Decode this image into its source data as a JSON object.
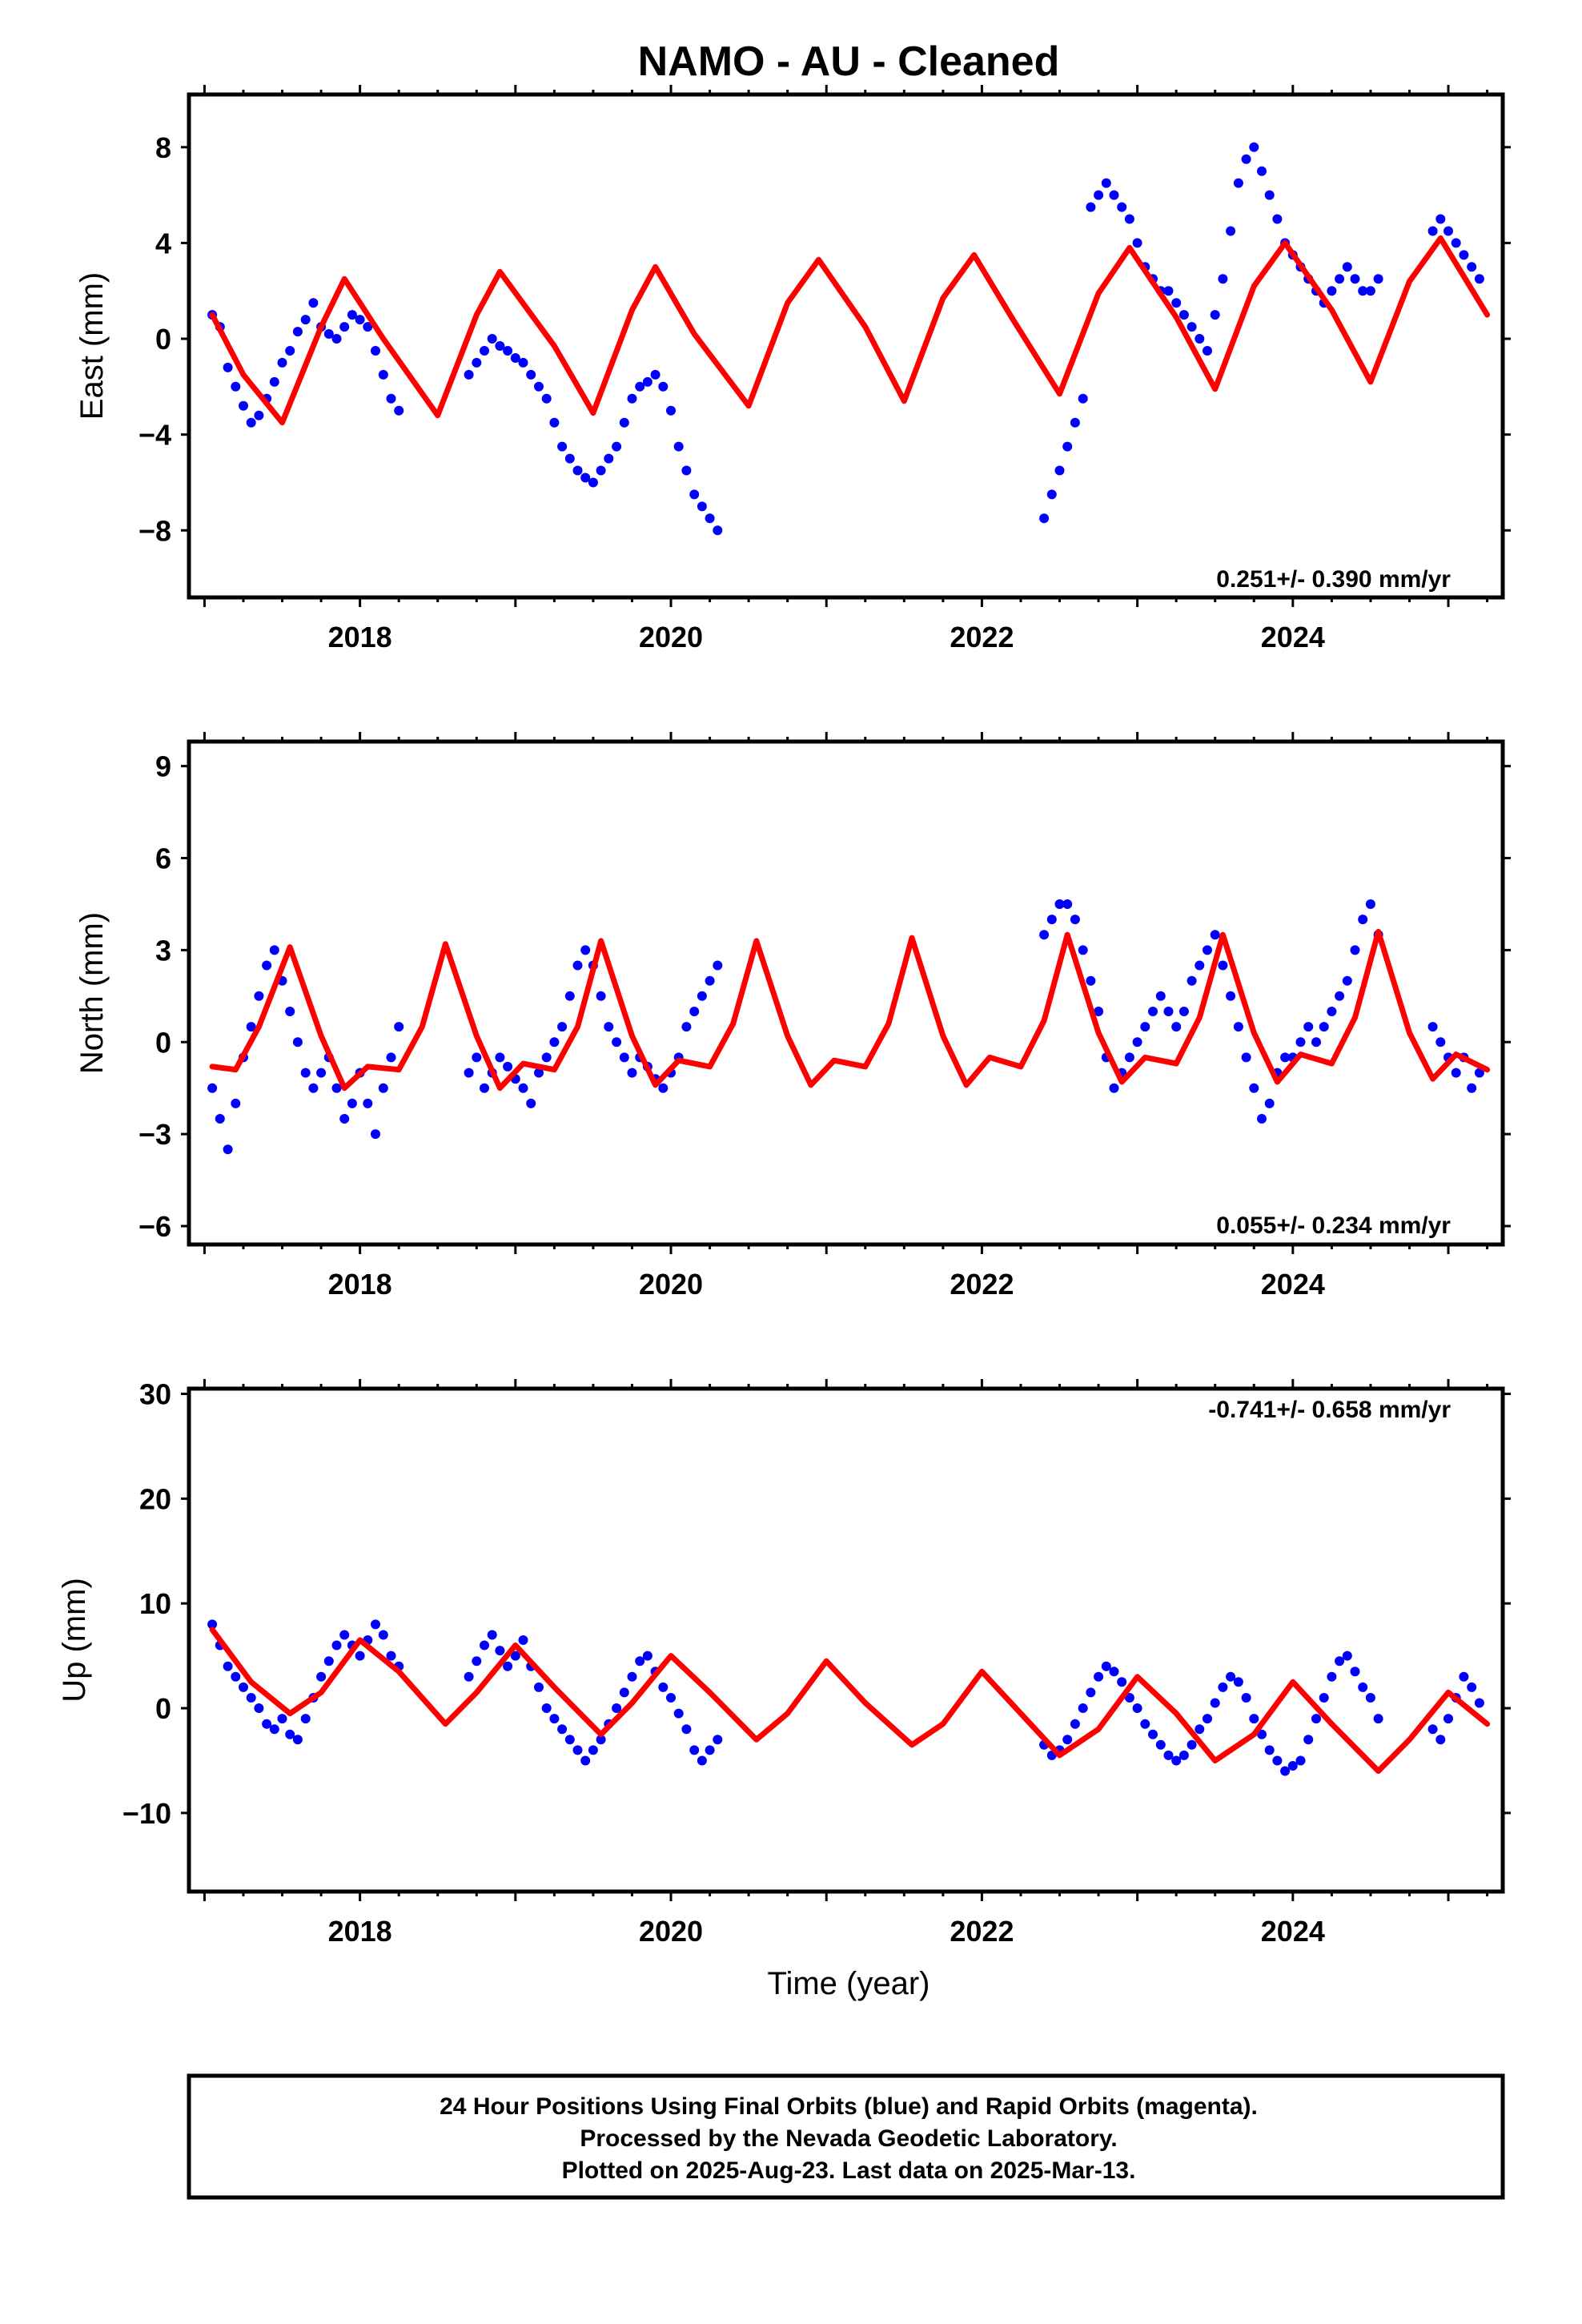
{
  "title": "NAMO  - AU - Cleaned",
  "xlabel": "Time (year)",
  "footer": {
    "line1": "24 Hour Positions Using Final Orbits (blue) and Rapid Orbits (magenta).",
    "line2": "Processed by the Nevada Geodetic Laboratory.",
    "line3": "Plotted on 2025-Aug-23. Last data on 2025-Mar-13."
  },
  "colors": {
    "final_orbits": "#0000ff",
    "model_fit": "#ff0000",
    "axis": "#000000"
  },
  "chart_data": [
    {
      "type": "scatter",
      "panel": "east",
      "ylabel": "East (mm)",
      "xlim": [
        2016.9,
        2025.35
      ],
      "ylim": [
        -10.8,
        10.2
      ],
      "xticks": [
        2018,
        2020,
        2022,
        2024
      ],
      "yticks": [
        8,
        4,
        0,
        -4,
        -8
      ],
      "ytick_labels": [
        "8",
        "4",
        "0",
        "−4",
        "−8"
      ],
      "rate_label": "0.251+/- 0.390 mm/yr",
      "rate_position": "bottom-right",
      "series": [
        {
          "kind": "points",
          "color": "#0000ff",
          "x": [
            2017.05,
            2017.1,
            2017.15,
            2017.2,
            2017.25,
            2017.3,
            2017.35,
            2017.4,
            2017.45,
            2017.5,
            2017.55,
            2017.6,
            2017.65,
            2017.7,
            2017.75,
            2017.8,
            2017.85,
            2017.9,
            2017.95,
            2018.0,
            2018.05,
            2018.1,
            2018.15,
            2018.2,
            2018.25,
            2018.7,
            2018.75,
            2018.8,
            2018.85,
            2018.9,
            2018.95,
            2019.0,
            2019.05,
            2019.1,
            2019.15,
            2019.2,
            2019.25,
            2019.3,
            2019.35,
            2019.4,
            2019.45,
            2019.5,
            2019.55,
            2019.6,
            2019.65,
            2019.7,
            2019.75,
            2019.8,
            2019.85,
            2019.9,
            2019.95,
            2020.0,
            2020.05,
            2020.1,
            2020.15,
            2020.2,
            2020.25,
            2020.3,
            2022.4,
            2022.45,
            2022.5,
            2022.55,
            2022.6,
            2022.65,
            2022.7,
            2022.75,
            2022.8,
            2022.85,
            2022.9,
            2022.95,
            2023.0,
            2023.05,
            2023.1,
            2023.15,
            2023.2,
            2023.25,
            2023.3,
            2023.35,
            2023.4,
            2023.45,
            2023.5,
            2023.55,
            2023.6,
            2023.65,
            2023.7,
            2023.75,
            2023.8,
            2023.85,
            2023.9,
            2023.95,
            2024.0,
            2024.05,
            2024.1,
            2024.15,
            2024.2,
            2024.25,
            2024.3,
            2024.35,
            2024.4,
            2024.45,
            2024.5,
            2024.55,
            2024.9,
            2024.95,
            2025.0,
            2025.05,
            2025.1,
            2025.15,
            2025.2
          ],
          "y": [
            1.0,
            0.5,
            -1.2,
            -2.0,
            -2.8,
            -3.5,
            -3.2,
            -2.5,
            -1.8,
            -1.0,
            -0.5,
            0.3,
            0.8,
            1.5,
            0.5,
            0.2,
            0.0,
            0.5,
            1.0,
            0.8,
            0.5,
            -0.5,
            -1.5,
            -2.5,
            -3.0,
            -1.5,
            -1.0,
            -0.5,
            0.0,
            -0.3,
            -0.5,
            -0.8,
            -1.0,
            -1.5,
            -2.0,
            -2.5,
            -3.5,
            -4.5,
            -5.0,
            -5.5,
            -5.8,
            -6.0,
            -5.5,
            -5.0,
            -4.5,
            -3.5,
            -2.5,
            -2.0,
            -1.8,
            -1.5,
            -2.0,
            -3.0,
            -4.5,
            -5.5,
            -6.5,
            -7.0,
            -7.5,
            -8.0,
            -7.5,
            -6.5,
            -5.5,
            -4.5,
            -3.5,
            -2.5,
            5.5,
            6.0,
            6.5,
            6.0,
            5.5,
            5.0,
            4.0,
            3.0,
            2.5,
            2.0,
            2.0,
            1.5,
            1.0,
            0.5,
            0.0,
            -0.5,
            1.0,
            2.5,
            4.5,
            6.5,
            7.5,
            8.0,
            7.0,
            6.0,
            5.0,
            4.0,
            3.5,
            3.0,
            2.5,
            2.0,
            1.5,
            2.0,
            2.5,
            3.0,
            2.5,
            2.0,
            2.0,
            2.5,
            4.5,
            5.0,
            4.5,
            4.0,
            3.5,
            3.0,
            2.5
          ]
        },
        {
          "kind": "line",
          "color": "#ff0000",
          "x": [
            2017.05,
            2017.25,
            2017.5,
            2017.75,
            2017.9,
            2018.15,
            2018.5,
            2018.75,
            2018.9,
            2019.25,
            2019.5,
            2019.75,
            2019.9,
            2020.15,
            2020.5,
            2020.75,
            2020.95,
            2021.25,
            2021.5,
            2021.75,
            2021.95,
            2022.2,
            2022.5,
            2022.75,
            2022.95,
            2023.25,
            2023.5,
            2023.75,
            2023.95,
            2024.25,
            2024.5,
            2024.75,
            2024.95,
            2025.25
          ],
          "y": [
            1.0,
            -1.5,
            -3.5,
            0.5,
            2.5,
            0.0,
            -3.2,
            1.0,
            2.8,
            -0.3,
            -3.1,
            1.2,
            3.0,
            0.2,
            -2.8,
            1.5,
            3.3,
            0.5,
            -2.6,
            1.7,
            3.5,
            0.8,
            -2.3,
            1.9,
            3.8,
            0.9,
            -2.1,
            2.2,
            4.0,
            1.2,
            -1.8,
            2.4,
            4.2,
            1.0
          ]
        }
      ]
    },
    {
      "type": "scatter",
      "panel": "north",
      "ylabel": "North (mm)",
      "xlim": [
        2016.9,
        2025.35
      ],
      "ylim": [
        -6.6,
        9.8
      ],
      "xticks": [
        2018,
        2020,
        2022,
        2024
      ],
      "yticks": [
        9,
        6,
        3,
        0,
        -3,
        -6
      ],
      "ytick_labels": [
        "9",
        "6",
        "3",
        "0",
        "−3",
        "−6"
      ],
      "rate_label": "0.055+/- 0.234 mm/yr",
      "rate_position": "bottom-right",
      "series": [
        {
          "kind": "points",
          "color": "#0000ff",
          "x": [
            2017.05,
            2017.1,
            2017.15,
            2017.2,
            2017.25,
            2017.3,
            2017.35,
            2017.4,
            2017.45,
            2017.5,
            2017.55,
            2017.6,
            2017.65,
            2017.7,
            2017.75,
            2017.8,
            2017.85,
            2017.9,
            2017.95,
            2018.0,
            2018.05,
            2018.1,
            2018.15,
            2018.2,
            2018.25,
            2018.7,
            2018.75,
            2018.8,
            2018.85,
            2018.9,
            2018.95,
            2019.0,
            2019.05,
            2019.1,
            2019.15,
            2019.2,
            2019.25,
            2019.3,
            2019.35,
            2019.4,
            2019.45,
            2019.5,
            2019.55,
            2019.6,
            2019.65,
            2019.7,
            2019.75,
            2019.8,
            2019.85,
            2019.9,
            2019.95,
            2020.0,
            2020.05,
            2020.1,
            2020.15,
            2020.2,
            2020.25,
            2020.3,
            2022.4,
            2022.45,
            2022.5,
            2022.55,
            2022.6,
            2022.65,
            2022.7,
            2022.75,
            2022.8,
            2022.85,
            2022.9,
            2022.95,
            2023.0,
            2023.05,
            2023.1,
            2023.15,
            2023.2,
            2023.25,
            2023.3,
            2023.35,
            2023.4,
            2023.45,
            2023.5,
            2023.55,
            2023.6,
            2023.65,
            2023.7,
            2023.75,
            2023.8,
            2023.85,
            2023.9,
            2023.95,
            2024.0,
            2024.05,
            2024.1,
            2024.15,
            2024.2,
            2024.25,
            2024.3,
            2024.35,
            2024.4,
            2024.45,
            2024.5,
            2024.55,
            2024.9,
            2024.95,
            2025.0,
            2025.05,
            2025.1,
            2025.15,
            2025.2
          ],
          "y": [
            -1.5,
            -2.5,
            -3.5,
            -2.0,
            -0.5,
            0.5,
            1.5,
            2.5,
            3.0,
            2.0,
            1.0,
            0.0,
            -1.0,
            -1.5,
            -1.0,
            -0.5,
            -1.5,
            -2.5,
            -2.0,
            -1.0,
            -2.0,
            -3.0,
            -1.5,
            -0.5,
            0.5,
            -1.0,
            -0.5,
            -1.5,
            -1.0,
            -0.5,
            -0.8,
            -1.2,
            -1.5,
            -2.0,
            -1.0,
            -0.5,
            0.0,
            0.5,
            1.5,
            2.5,
            3.0,
            2.5,
            1.5,
            0.5,
            0.0,
            -0.5,
            -1.0,
            -0.5,
            -0.8,
            -1.2,
            -1.5,
            -1.0,
            -0.5,
            0.5,
            1.0,
            1.5,
            2.0,
            2.5,
            3.5,
            4.0,
            4.5,
            4.5,
            4.0,
            3.0,
            2.0,
            1.0,
            -0.5,
            -1.5,
            -1.0,
            -0.5,
            0.0,
            0.5,
            1.0,
            1.5,
            1.0,
            0.5,
            1.0,
            2.0,
            2.5,
            3.0,
            3.5,
            2.5,
            1.5,
            0.5,
            -0.5,
            -1.5,
            -2.5,
            -2.0,
            -1.0,
            -0.5,
            -0.5,
            0.0,
            0.5,
            0.0,
            0.5,
            1.0,
            1.5,
            2.0,
            3.0,
            4.0,
            4.5,
            3.5,
            0.5,
            0.0,
            -0.5,
            -1.0,
            -0.5,
            -1.5,
            -1.0
          ]
        },
        {
          "kind": "line",
          "color": "#ff0000",
          "x": [
            2017.05,
            2017.2,
            2017.35,
            2017.55,
            2017.75,
            2017.9,
            2018.05,
            2018.25,
            2018.4,
            2018.55,
            2018.75,
            2018.9,
            2019.05,
            2019.25,
            2019.4,
            2019.55,
            2019.75,
            2019.9,
            2020.05,
            2020.25,
            2020.4,
            2020.55,
            2020.75,
            2020.9,
            2021.05,
            2021.25,
            2021.4,
            2021.55,
            2021.75,
            2021.9,
            2022.05,
            2022.25,
            2022.4,
            2022.55,
            2022.75,
            2022.9,
            2023.05,
            2023.25,
            2023.4,
            2023.55,
            2023.75,
            2023.9,
            2024.05,
            2024.25,
            2024.4,
            2024.55,
            2024.75,
            2024.9,
            2025.05,
            2025.25
          ],
          "y": [
            -0.8,
            -0.9,
            0.5,
            3.1,
            0.2,
            -1.5,
            -0.8,
            -0.9,
            0.5,
            3.2,
            0.2,
            -1.5,
            -0.7,
            -0.9,
            0.5,
            3.3,
            0.2,
            -1.4,
            -0.6,
            -0.8,
            0.6,
            3.3,
            0.2,
            -1.4,
            -0.6,
            -0.8,
            0.6,
            3.4,
            0.2,
            -1.4,
            -0.5,
            -0.8,
            0.7,
            3.5,
            0.3,
            -1.3,
            -0.5,
            -0.7,
            0.8,
            3.5,
            0.3,
            -1.3,
            -0.4,
            -0.7,
            0.8,
            3.6,
            0.3,
            -1.2,
            -0.4,
            -0.9
          ]
        }
      ]
    },
    {
      "type": "scatter",
      "panel": "up",
      "ylabel": "Up (mm)",
      "xlim": [
        2016.9,
        2025.35
      ],
      "ylim": [
        -17.5,
        30.5
      ],
      "xticks": [
        2018,
        2020,
        2022,
        2024
      ],
      "yticks": [
        30,
        20,
        10,
        0,
        -10
      ],
      "ytick_labels": [
        "30",
        "20",
        "10",
        "0",
        "−10"
      ],
      "rate_label": "-0.741+/- 0.658 mm/yr",
      "rate_position": "top-right",
      "series": [
        {
          "kind": "points",
          "color": "#0000ff",
          "x": [
            2017.05,
            2017.1,
            2017.15,
            2017.2,
            2017.25,
            2017.3,
            2017.35,
            2017.4,
            2017.45,
            2017.5,
            2017.55,
            2017.6,
            2017.65,
            2017.7,
            2017.75,
            2017.8,
            2017.85,
            2017.9,
            2017.95,
            2018.0,
            2018.05,
            2018.1,
            2018.15,
            2018.2,
            2018.25,
            2018.7,
            2018.75,
            2018.8,
            2018.85,
            2018.9,
            2018.95,
            2019.0,
            2019.05,
            2019.1,
            2019.15,
            2019.2,
            2019.25,
            2019.3,
            2019.35,
            2019.4,
            2019.45,
            2019.5,
            2019.55,
            2019.6,
            2019.65,
            2019.7,
            2019.75,
            2019.8,
            2019.85,
            2019.9,
            2019.95,
            2020.0,
            2020.05,
            2020.1,
            2020.15,
            2020.2,
            2020.25,
            2020.3,
            2022.4,
            2022.45,
            2022.5,
            2022.55,
            2022.6,
            2022.65,
            2022.7,
            2022.75,
            2022.8,
            2022.85,
            2022.9,
            2022.95,
            2023.0,
            2023.05,
            2023.1,
            2023.15,
            2023.2,
            2023.25,
            2023.3,
            2023.35,
            2023.4,
            2023.45,
            2023.5,
            2023.55,
            2023.6,
            2023.65,
            2023.7,
            2023.75,
            2023.8,
            2023.85,
            2023.9,
            2023.95,
            2024.0,
            2024.05,
            2024.1,
            2024.15,
            2024.2,
            2024.25,
            2024.3,
            2024.35,
            2024.4,
            2024.45,
            2024.5,
            2024.55,
            2024.9,
            2024.95,
            2025.0,
            2025.05,
            2025.1,
            2025.15,
            2025.2
          ],
          "y": [
            8.0,
            6.0,
            4.0,
            3.0,
            2.0,
            1.0,
            0.0,
            -1.5,
            -2.0,
            -1.0,
            -2.5,
            -3.0,
            -1.0,
            1.0,
            3.0,
            4.5,
            6.0,
            7.0,
            6.0,
            5.0,
            6.5,
            8.0,
            7.0,
            5.0,
            4.0,
            3.0,
            4.5,
            6.0,
            7.0,
            5.5,
            4.0,
            5.0,
            6.5,
            4.0,
            2.0,
            0.0,
            -1.0,
            -2.0,
            -3.0,
            -4.0,
            -5.0,
            -4.0,
            -3.0,
            -1.5,
            0.0,
            1.5,
            3.0,
            4.5,
            5.0,
            3.5,
            2.0,
            1.0,
            -0.5,
            -2.0,
            -4.0,
            -5.0,
            -4.0,
            -3.0,
            -3.5,
            -4.5,
            -4.0,
            -3.0,
            -1.5,
            0.0,
            1.5,
            3.0,
            4.0,
            3.5,
            2.5,
            1.0,
            0.0,
            -1.5,
            -2.5,
            -3.5,
            -4.5,
            -5.0,
            -4.5,
            -3.5,
            -2.0,
            -1.0,
            0.5,
            2.0,
            3.0,
            2.5,
            1.0,
            -1.0,
            -2.5,
            -4.0,
            -5.0,
            -6.0,
            -5.5,
            -5.0,
            -3.0,
            -1.0,
            1.0,
            3.0,
            4.5,
            5.0,
            3.5,
            2.0,
            1.0,
            -1.0,
            -2.0,
            -3.0,
            -1.0,
            1.0,
            3.0,
            2.0,
            0.5
          ]
        },
        {
          "kind": "line",
          "color": "#ff0000",
          "x": [
            2017.05,
            2017.3,
            2017.55,
            2017.75,
            2018.0,
            2018.25,
            2018.55,
            2018.75,
            2019.0,
            2019.25,
            2019.55,
            2019.75,
            2020.0,
            2020.25,
            2020.55,
            2020.75,
            2021.0,
            2021.25,
            2021.55,
            2021.75,
            2022.0,
            2022.25,
            2022.5,
            2022.75,
            2023.0,
            2023.25,
            2023.5,
            2023.75,
            2024.0,
            2024.25,
            2024.55,
            2024.75,
            2025.0,
            2025.25
          ],
          "y": [
            7.5,
            2.5,
            -0.5,
            1.5,
            6.5,
            3.5,
            -1.5,
            1.5,
            6.0,
            2.0,
            -2.5,
            0.5,
            5.0,
            1.5,
            -3.0,
            -0.5,
            4.5,
            0.5,
            -3.5,
            -1.5,
            3.5,
            -0.5,
            -4.5,
            -2.0,
            3.0,
            -0.5,
            -5.0,
            -2.5,
            2.5,
            -1.5,
            -6.0,
            -3.0,
            1.5,
            -1.5
          ]
        }
      ]
    }
  ]
}
